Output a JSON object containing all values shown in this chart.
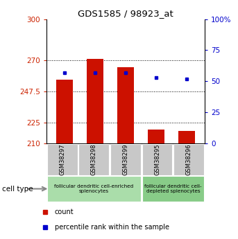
{
  "title": "GDS1585 / 98923_at",
  "samples": [
    "GSM38297",
    "GSM38298",
    "GSM38299",
    "GSM38295",
    "GSM38296"
  ],
  "counts": [
    256,
    271,
    265,
    220,
    219
  ],
  "percentiles": [
    57,
    57,
    57,
    53,
    52
  ],
  "y_min": 210,
  "y_max": 300,
  "y_ticks": [
    210,
    225,
    247.5,
    270,
    300
  ],
  "y_tick_labels": [
    "210",
    "225",
    "247.5",
    "270",
    "300"
  ],
  "y_right_ticks": [
    0,
    25,
    50,
    75,
    100
  ],
  "y_right_tick_labels": [
    "0",
    "25",
    "50",
    "75",
    "100%"
  ],
  "bar_color": "#cc1100",
  "dot_color": "#0000cc",
  "bar_width": 0.55,
  "groups": [
    {
      "label": "follicular dendritic cell-enriched\nsplenocytes",
      "indices": [
        0,
        1,
        2
      ],
      "color": "#aaddaa"
    },
    {
      "label": "follicular dendritic cell-\ndepleted splenocytes",
      "indices": [
        3,
        4
      ],
      "color": "#88cc88"
    }
  ],
  "cell_type_label": "cell type",
  "legend_count_label": "count",
  "legend_percentile_label": "percentile rank within the sample",
  "tick_label_color_left": "#cc2200",
  "tick_label_color_right": "#0000cc",
  "tickbox_color": "#c8c8c8",
  "arrow_color": "#888888"
}
